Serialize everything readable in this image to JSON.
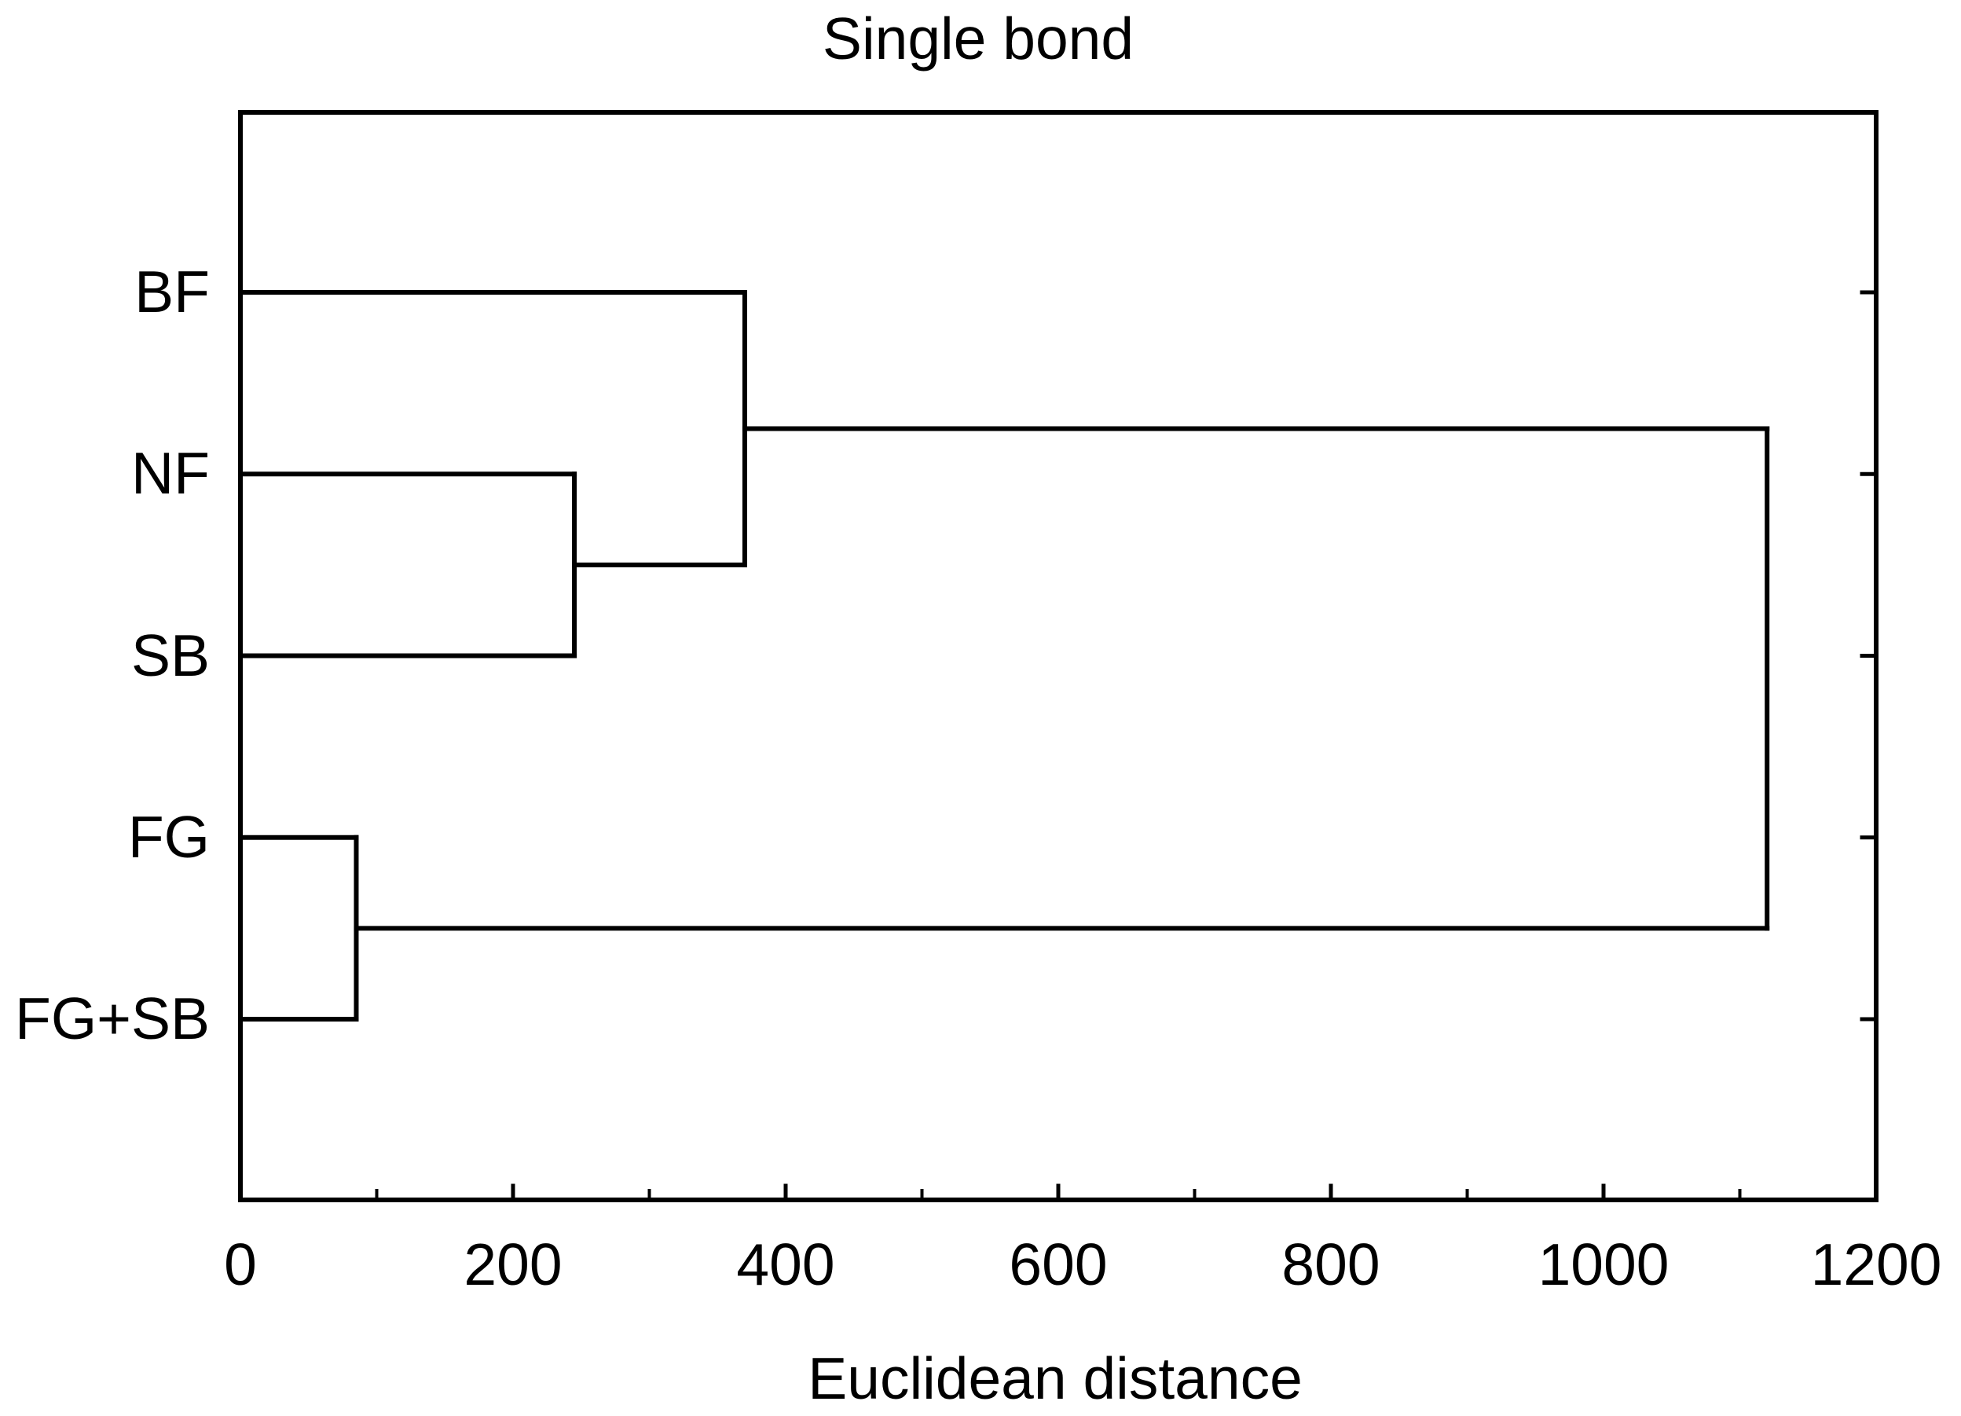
{
  "title": "Single bond",
  "xlabel": "Euclidean distance",
  "chart_data": {
    "type": "dendrogram",
    "orientation": "horizontal_root_right",
    "title": "Single bond",
    "xlabel": "Euclidean distance",
    "leaves": [
      "BF",
      "NF",
      "SB",
      "FG",
      "FG+SB"
    ],
    "xlim": [
      0,
      1200
    ],
    "x_major_ticks": [
      0,
      200,
      400,
      600,
      800,
      1000,
      1200
    ],
    "x_minor_tick_step": 100,
    "grid": false,
    "legend": false,
    "line_color": "#000000",
    "background_color": "#ffffff",
    "merges": [
      {
        "id": "node-NF-SB",
        "children": [
          "NF",
          "SB"
        ],
        "distance": 245
      },
      {
        "id": "node-BF-NF-SB",
        "children": [
          "BF",
          "node-NF-SB"
        ],
        "distance": 370
      },
      {
        "id": "node-FG-FGSB",
        "children": [
          "FG",
          "FG+SB"
        ],
        "distance": 85
      },
      {
        "id": "root",
        "children": [
          "node-BF-NF-SB",
          "node-FG-FGSB"
        ],
        "distance": 1120
      }
    ]
  }
}
